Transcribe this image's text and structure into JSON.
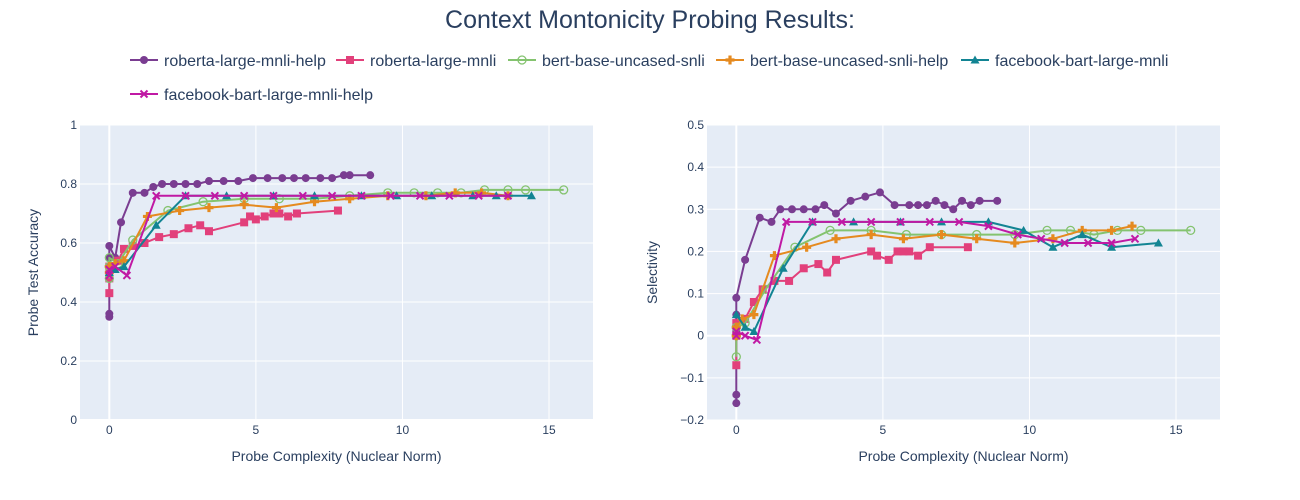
{
  "title": "Context Montonicity Probing Results:",
  "legend": [
    "roberta-large-mnli-help",
    "roberta-large-mnli",
    "bert-base-uncased-snli",
    "bert-base-uncased-snli-help",
    "facebook-bart-large-mnli",
    "facebook-bart-large-mnli-help"
  ],
  "colors": {
    "roberta-large-mnli-help": "#7a3d91",
    "roberta-large-mnli": "#e2407b",
    "bert-base-uncased-snli": "#84c36f",
    "bert-base-uncased-snli-help": "#e58a1f",
    "facebook-bart-large-mnli": "#128493",
    "facebook-bart-large-mnli-help": "#c019a4"
  },
  "chart_data": [
    {
      "type": "line",
      "xlabel": "Probe Complexity (Nuclear Norm)",
      "ylabel": "Probe Test Accuracy",
      "xlim": [
        -1,
        16.5
      ],
      "ylim": [
        0,
        1
      ],
      "xticks": [
        0,
        5,
        10,
        15
      ],
      "yticks": [
        0,
        0.2,
        0.4,
        0.6,
        0.8,
        1
      ],
      "ytick_labels": [
        "0",
        "0.2",
        "0.4",
        "0.6",
        "0.8",
        "1"
      ],
      "series": [
        {
          "name": "roberta-large-mnli-help",
          "marker": "circle",
          "x": [
            0,
            0,
            0,
            0,
            0,
            0,
            0.2,
            0.4,
            0.8,
            1.2,
            1.5,
            1.8,
            2.2,
            2.6,
            3,
            3.4,
            3.9,
            4.4,
            4.9,
            5.4,
            5.9,
            6.3,
            6.7,
            7.2,
            7.6,
            8.0,
            8.2,
            8.9
          ],
          "y": [
            0.35,
            0.36,
            0.5,
            0.52,
            0.55,
            0.59,
            0.55,
            0.67,
            0.77,
            0.77,
            0.79,
            0.8,
            0.8,
            0.8,
            0.8,
            0.81,
            0.81,
            0.81,
            0.82,
            0.82,
            0.82,
            0.82,
            0.82,
            0.82,
            0.82,
            0.83,
            0.83,
            0.83
          ]
        },
        {
          "name": "roberta-large-mnli",
          "marker": "square",
          "x": [
            0,
            0,
            0,
            0.3,
            0.5,
            0.8,
            1.2,
            1.7,
            2.2,
            2.7,
            3.1,
            3.4,
            4.6,
            4.8,
            5.0,
            5.3,
            5.6,
            5.8,
            6.1,
            6.4,
            7.8
          ],
          "y": [
            0.43,
            0.48,
            0.52,
            0.54,
            0.58,
            0.59,
            0.6,
            0.62,
            0.63,
            0.65,
            0.66,
            0.64,
            0.67,
            0.69,
            0.68,
            0.69,
            0.7,
            0.7,
            0.69,
            0.7,
            0.71
          ]
        },
        {
          "name": "bert-base-uncased-snli",
          "marker": "circle-open",
          "x": [
            0,
            0,
            0,
            0.3,
            0.8,
            2.0,
            3.2,
            4.6,
            5.8,
            7.0,
            8.2,
            9.5,
            10.4,
            11.2,
            12.0,
            12.8,
            13.6,
            14.2,
            15.5
          ],
          "y": [
            0.48,
            0.52,
            0.55,
            0.53,
            0.61,
            0.71,
            0.74,
            0.75,
            0.75,
            0.75,
            0.76,
            0.77,
            0.77,
            0.77,
            0.77,
            0.78,
            0.78,
            0.78,
            0.78
          ]
        },
        {
          "name": "bert-base-uncased-snli-help",
          "marker": "cross",
          "x": [
            0,
            0,
            0.2,
            0.5,
            1.3,
            2.4,
            3.4,
            4.6,
            5.7,
            7.0,
            8.2,
            9.5,
            10.8,
            11.8,
            12.7,
            13.6
          ],
          "y": [
            0.5,
            0.52,
            0.53,
            0.54,
            0.69,
            0.71,
            0.72,
            0.73,
            0.72,
            0.74,
            0.75,
            0.76,
            0.76,
            0.77,
            0.77,
            0.76
          ]
        },
        {
          "name": "facebook-bart-large-mnli",
          "marker": "triangle",
          "x": [
            0,
            0.2,
            0.5,
            1.6,
            2.6,
            4.0,
            5.6,
            7.0,
            8.6,
            9.8,
            11.0,
            12.4,
            13.2,
            14.4
          ],
          "y": [
            0.5,
            0.51,
            0.52,
            0.66,
            0.76,
            0.76,
            0.76,
            0.76,
            0.76,
            0.76,
            0.76,
            0.76,
            0.76,
            0.76
          ]
        },
        {
          "name": "facebook-bart-large-mnli-help",
          "marker": "x",
          "x": [
            0,
            0,
            0.2,
            0.6,
            1.6,
            2.6,
            3.6,
            4.6,
            5.6,
            6.6,
            7.6,
            8.6,
            9.6,
            10.6,
            11.6,
            12.6,
            13.6
          ],
          "y": [
            0.49,
            0.51,
            0.52,
            0.49,
            0.76,
            0.76,
            0.76,
            0.76,
            0.76,
            0.76,
            0.76,
            0.76,
            0.76,
            0.76,
            0.76,
            0.76,
            0.76
          ]
        }
      ]
    },
    {
      "type": "line",
      "xlabel": "Probe Complexity (Nuclear Norm)",
      "ylabel": "Selectivity",
      "xlim": [
        -1,
        16.5
      ],
      "ylim": [
        -0.2,
        0.5
      ],
      "xticks": [
        0,
        5,
        10,
        15
      ],
      "yticks": [
        -0.2,
        -0.1,
        0,
        0.1,
        0.2,
        0.3,
        0.4,
        0.5
      ],
      "ytick_labels": [
        "−0.2",
        "−0.1",
        "0",
        "0.1",
        "0.2",
        "0.3",
        "0.4",
        "0.5"
      ],
      "series": [
        {
          "name": "roberta-large-mnli-help",
          "marker": "circle",
          "x": [
            0,
            0,
            0,
            0,
            0,
            0.3,
            0.8,
            1.2,
            1.5,
            1.9,
            2.3,
            2.7,
            3.0,
            3.4,
            3.9,
            4.4,
            4.9,
            5.4,
            5.9,
            6.2,
            6.5,
            6.8,
            7.1,
            7.4,
            7.7,
            8.0,
            8.3,
            8.9
          ],
          "y": [
            -0.16,
            -0.14,
            0.01,
            0.05,
            0.09,
            0.18,
            0.28,
            0.27,
            0.3,
            0.3,
            0.3,
            0.3,
            0.31,
            0.29,
            0.32,
            0.33,
            0.34,
            0.31,
            0.31,
            0.31,
            0.31,
            0.32,
            0.31,
            0.3,
            0.32,
            0.31,
            0.32,
            0.32
          ]
        },
        {
          "name": "roberta-large-mnli",
          "marker": "square",
          "x": [
            0,
            0,
            0,
            0.3,
            0.6,
            0.9,
            1.3,
            1.8,
            2.3,
            2.8,
            3.1,
            3.4,
            4.6,
            4.8,
            5.2,
            5.5,
            5.7,
            5.9,
            6.2,
            6.6,
            7.9
          ],
          "y": [
            -0.07,
            0.0,
            0.03,
            0.04,
            0.08,
            0.11,
            0.13,
            0.13,
            0.16,
            0.17,
            0.15,
            0.18,
            0.2,
            0.19,
            0.18,
            0.2,
            0.2,
            0.2,
            0.19,
            0.21,
            0.21
          ]
        },
        {
          "name": "bert-base-uncased-snli",
          "marker": "circle-open",
          "x": [
            0,
            0,
            0,
            0.3,
            1.0,
            2.0,
            3.2,
            4.6,
            5.8,
            7.0,
            8.2,
            9.5,
            10.6,
            11.4,
            12.2,
            13.0,
            13.8,
            15.5
          ],
          "y": [
            -0.05,
            0.0,
            0.02,
            0.03,
            0.11,
            0.21,
            0.25,
            0.25,
            0.24,
            0.24,
            0.24,
            0.24,
            0.25,
            0.25,
            0.24,
            0.25,
            0.25,
            0.25
          ]
        },
        {
          "name": "bert-base-uncased-snli-help",
          "marker": "cross",
          "x": [
            0,
            0,
            0.2,
            0.6,
            1.3,
            2.4,
            3.4,
            4.6,
            5.7,
            7.0,
            8.2,
            9.5,
            10.8,
            11.8,
            12.8,
            13.5
          ],
          "y": [
            0.0,
            0.02,
            0.04,
            0.05,
            0.19,
            0.21,
            0.23,
            0.24,
            0.23,
            0.24,
            0.23,
            0.22,
            0.23,
            0.25,
            0.25,
            0.26
          ]
        },
        {
          "name": "facebook-bart-large-mnli",
          "marker": "triangle",
          "x": [
            0,
            0.3,
            0.6,
            1.6,
            2.6,
            4.0,
            5.6,
            7.0,
            8.6,
            9.8,
            10.8,
            11.8,
            12.8,
            14.4
          ],
          "y": [
            0.05,
            0.02,
            0.01,
            0.16,
            0.27,
            0.27,
            0.27,
            0.27,
            0.27,
            0.25,
            0.21,
            0.24,
            0.21,
            0.22
          ]
        },
        {
          "name": "facebook-bart-large-mnli-help",
          "marker": "x",
          "x": [
            0,
            0,
            0.3,
            0.7,
            1.7,
            2.6,
            3.6,
            4.6,
            5.6,
            6.6,
            7.6,
            8.6,
            9.6,
            10.4,
            11.2,
            12.0,
            12.8,
            13.6
          ],
          "y": [
            0.0,
            0.01,
            0.0,
            -0.01,
            0.27,
            0.27,
            0.27,
            0.27,
            0.27,
            0.27,
            0.27,
            0.26,
            0.24,
            0.23,
            0.22,
            0.22,
            0.22,
            0.23
          ]
        }
      ]
    }
  ]
}
